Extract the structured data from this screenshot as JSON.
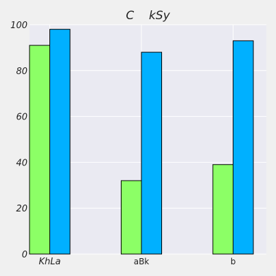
{
  "chart_data": {
    "type": "bar",
    "title": "C    kSy",
    "xlabel": "",
    "ylabel": "",
    "categories": [
      "KhLa",
      "aBk",
      "b"
    ],
    "series": [
      {
        "values": [
          91,
          32,
          39
        ],
        "color": "#8cff66"
      },
      {
        "values": [
          98,
          88,
          93
        ],
        "color": "#00b0ff"
      }
    ],
    "ylim": [
      0,
      100
    ],
    "yticks": [
      0,
      20,
      40,
      60,
      80,
      100
    ],
    "grid": true,
    "legend": "none",
    "plot_background": "#eaeaf2",
    "page_background": "#f0f0f0"
  }
}
